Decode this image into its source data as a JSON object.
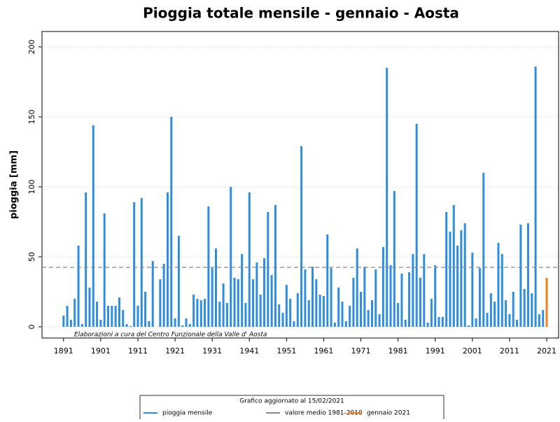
{
  "chart_data": {
    "type": "bar",
    "title": "Pioggia totale mensile -  gennaio - Aosta",
    "y_label": "pioggia [mm]",
    "annotation": "Elaborazioni a cura del Centro Funzionale della Valle d' Aosta",
    "legend_title": "Grafico aggiornato al 15/02/2021",
    "x": [
      1891,
      1892,
      1893,
      1894,
      1895,
      1896,
      1897,
      1898,
      1899,
      1900,
      1901,
      1902,
      1903,
      1904,
      1905,
      1906,
      1907,
      1908,
      1909,
      1910,
      1911,
      1912,
      1913,
      1914,
      1915,
      1916,
      1917,
      1918,
      1919,
      1920,
      1921,
      1922,
      1923,
      1924,
      1925,
      1926,
      1927,
      1928,
      1929,
      1930,
      1931,
      1932,
      1933,
      1934,
      1935,
      1936,
      1937,
      1938,
      1939,
      1940,
      1941,
      1942,
      1943,
      1944,
      1945,
      1946,
      1947,
      1948,
      1949,
      1950,
      1951,
      1952,
      1953,
      1954,
      1955,
      1956,
      1957,
      1958,
      1959,
      1960,
      1961,
      1962,
      1963,
      1964,
      1965,
      1966,
      1967,
      1968,
      1969,
      1970,
      1971,
      1972,
      1973,
      1974,
      1975,
      1976,
      1977,
      1978,
      1979,
      1980,
      1981,
      1982,
      1983,
      1984,
      1985,
      1986,
      1987,
      1988,
      1989,
      1990,
      1991,
      1992,
      1993,
      1994,
      1995,
      1996,
      1997,
      1998,
      1999,
      2000,
      2001,
      2002,
      2003,
      2004,
      2005,
      2006,
      2007,
      2008,
      2009,
      2010,
      2011,
      2012,
      2013,
      2014,
      2015,
      2016,
      2017,
      2018,
      2019,
      2020,
      2021
    ],
    "series": [
      {
        "name": "pioggia mensile",
        "color": "#2e8de0",
        "values": [
          8,
          15,
          5,
          20,
          58,
          2,
          96,
          28,
          144,
          18,
          5,
          81,
          15,
          15,
          15,
          21,
          12,
          2,
          0.5,
          89,
          15,
          92,
          25,
          4,
          47,
          0,
          34,
          45,
          96,
          150,
          6,
          65,
          1,
          6,
          2,
          23,
          20,
          19,
          20,
          86,
          42,
          56,
          18,
          31,
          17,
          100,
          35,
          34,
          52,
          17,
          96,
          34,
          46,
          23,
          49,
          82,
          37,
          87,
          16,
          10,
          30,
          20,
          4,
          24,
          129,
          41,
          19,
          43,
          34,
          23,
          22,
          66,
          42,
          3,
          28,
          18,
          4,
          15,
          35,
          56,
          25,
          43,
          12,
          19,
          41,
          9,
          57,
          185,
          44,
          97,
          17,
          38,
          5,
          39,
          52,
          145,
          35,
          52,
          3,
          20,
          44,
          7,
          7,
          82,
          68,
          87,
          58,
          69,
          74,
          1,
          53,
          6,
          42,
          110,
          10,
          24,
          18,
          60,
          52,
          19,
          9,
          25,
          5,
          73,
          27,
          74,
          24,
          186,
          9,
          12,
          null
        ]
      },
      {
        "name": "gennaio 2021",
        "color": "#f07f1a",
        "values": [
          null,
          null,
          null,
          null,
          null,
          null,
          null,
          null,
          null,
          null,
          null,
          null,
          null,
          null,
          null,
          null,
          null,
          null,
          null,
          null,
          null,
          null,
          null,
          null,
          null,
          null,
          null,
          null,
          null,
          null,
          null,
          null,
          null,
          null,
          null,
          null,
          null,
          null,
          null,
          null,
          null,
          null,
          null,
          null,
          null,
          null,
          null,
          null,
          null,
          null,
          null,
          null,
          null,
          null,
          null,
          null,
          null,
          null,
          null,
          null,
          null,
          null,
          null,
          null,
          null,
          null,
          null,
          null,
          null,
          null,
          null,
          null,
          null,
          null,
          null,
          null,
          null,
          null,
          null,
          null,
          null,
          null,
          null,
          null,
          null,
          null,
          null,
          null,
          null,
          null,
          null,
          null,
          null,
          null,
          null,
          null,
          null,
          null,
          null,
          null,
          null,
          null,
          null,
          null,
          null,
          null,
          null,
          null,
          null,
          null,
          null,
          null,
          null,
          null,
          null,
          null,
          null,
          null,
          null,
          null,
          null,
          null,
          null,
          null,
          null,
          null,
          null,
          null,
          null,
          null,
          35
        ]
      }
    ],
    "reference_line": {
      "name": "valore medio 1981-2010",
      "value": 42.5,
      "color": "#888888"
    },
    "xlim": [
      1885.2,
      2024.2
    ],
    "xticks": [
      1891,
      1901,
      1911,
      1921,
      1931,
      1941,
      1951,
      1961,
      1971,
      1981,
      1991,
      2001,
      2011,
      2021
    ],
    "ylim": [
      -8,
      211
    ],
    "yticks": [
      0,
      50,
      100,
      150,
      200
    ],
    "grid": true
  }
}
